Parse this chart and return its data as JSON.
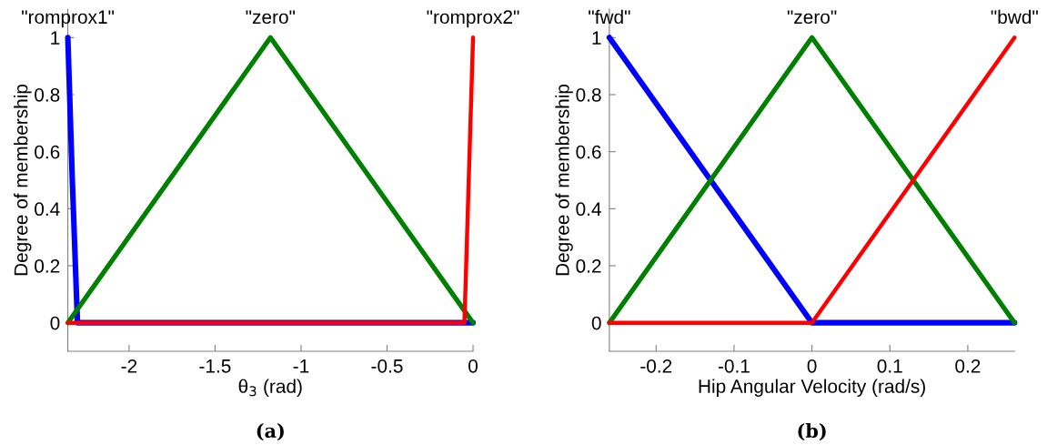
{
  "chart_data": [
    {
      "type": "line",
      "xlabel": "θ$_{3}$ (rad)",
      "ylabel": "Degree of membership",
      "xlim": [
        -2.356,
        0
      ],
      "ylim": [
        -0.1,
        1.1
      ],
      "xticks": [
        -2,
        -1.5,
        -1,
        -0.5,
        0
      ],
      "yticks": [
        0,
        0.2,
        0.4,
        0.6,
        0.8,
        1
      ],
      "grid": false,
      "legend": false,
      "marker": "none",
      "line_style": "solid",
      "series": [
        {
          "color": "#0000ff",
          "x": [
            -2.356,
            -2.33,
            -2.3,
            0
          ],
          "values": [
            1,
            0.5,
            0,
            0
          ]
        },
        {
          "color": "#008000",
          "x": [
            -2.356,
            -1.178,
            0
          ],
          "values": [
            0,
            1,
            0
          ]
        },
        {
          "color": "#ff0000",
          "x": [
            -2.356,
            -0.05,
            -0.025,
            0
          ],
          "values": [
            0,
            0,
            0.5,
            1
          ]
        }
      ],
      "annotations": [
        {
          "text": "\"romprox1\"",
          "x": -2.356,
          "y": 1
        },
        {
          "text": "\"zero\"",
          "x": -1.178,
          "y": 1
        },
        {
          "text": "\"romprox2\"",
          "x": 0,
          "y": 1
        },
        "(a)"
      ]
    },
    {
      "type": "line",
      "xlabel": "Hip Angular Velocity (rad/s)",
      "ylabel": "Degree of membership",
      "xlim": [
        -0.26,
        0.26
      ],
      "ylim": [
        -0.1,
        1.1
      ],
      "xticks": [
        -0.2,
        -0.1,
        0,
        0.1,
        0.2
      ],
      "yticks": [
        0,
        0.2,
        0.4,
        0.6,
        0.8,
        1
      ],
      "grid": false,
      "legend": false,
      "marker": "none",
      "line_style": "solid",
      "series": [
        {
          "color": "#0000ff",
          "x": [
            -0.26,
            0,
            0.26
          ],
          "values": [
            1,
            0,
            0
          ]
        },
        {
          "color": "#008000",
          "x": [
            -0.26,
            0,
            0.26
          ],
          "values": [
            0,
            1,
            0
          ]
        },
        {
          "color": "#ff0000",
          "x": [
            -0.26,
            0,
            0.26
          ],
          "values": [
            0,
            0,
            1
          ]
        }
      ],
      "annotations": [
        {
          "text": "\"fwd\"",
          "x": -0.26,
          "y": 1
        },
        {
          "text": "\"zero\"",
          "x": 0,
          "y": 1
        },
        {
          "text": "\"bwd\"",
          "x": 0.26,
          "y": 1
        },
        "(b)"
      ]
    }
  ]
}
